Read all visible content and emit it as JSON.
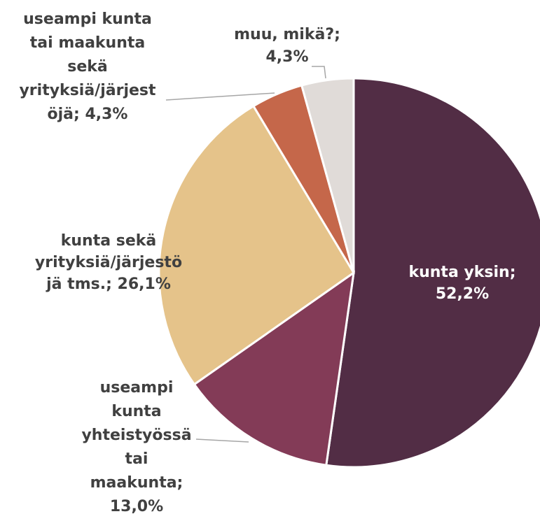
{
  "chart_data": {
    "type": "pie",
    "labels": [
      [
        "kunta yksin;",
        "52,2%"
      ],
      [
        "useampi",
        "kunta",
        "yhteistyössä",
        "tai",
        "maakunta;",
        "13,0%"
      ],
      [
        "kunta sekä",
        "yrityksiä/järjestö",
        "jä tms.; 26,1%"
      ],
      [
        "useampi kunta",
        "tai maakunta",
        "sekä",
        "yrityksiä/järjest",
        "öjä; 4,3%"
      ],
      [
        "muu, mikä?;",
        "4,3%"
      ]
    ],
    "values": [
      52.2,
      13.0,
      26.1,
      4.3,
      4.3
    ],
    "colors": [
      "#522d45",
      "#833b57",
      "#e5c38a",
      "#c5674a",
      "#e0dbd8"
    ]
  }
}
